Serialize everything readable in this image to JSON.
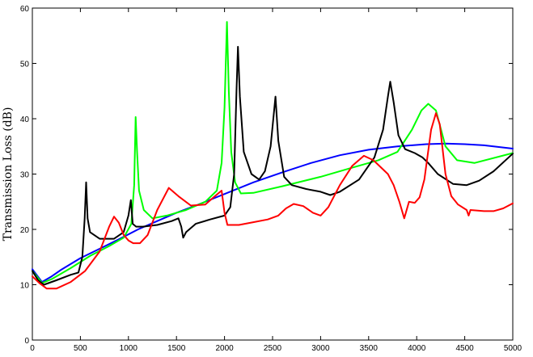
{
  "chart_data": {
    "type": "line",
    "title": "",
    "xlabel": "",
    "ylabel": "Transmission Loss (dB)",
    "xlim": [
      0,
      5000
    ],
    "ylim": [
      0,
      60
    ],
    "xticks": [
      0,
      500,
      1000,
      1500,
      2000,
      2500,
      3000,
      3500,
      4000,
      4500,
      5000
    ],
    "yticks": [
      0,
      10,
      20,
      30,
      40,
      50,
      60
    ],
    "grid": false,
    "legend": "none",
    "series": [
      {
        "color": "#0000ff",
        "points": [
          [
            0,
            12.8
          ],
          [
            100,
            10.5
          ],
          [
            200,
            11.5
          ],
          [
            300,
            12.7
          ],
          [
            500,
            14.8
          ],
          [
            700,
            16.5
          ],
          [
            900,
            18.2
          ],
          [
            1100,
            20.0
          ],
          [
            1300,
            21.5
          ],
          [
            1500,
            23.0
          ],
          [
            1700,
            24.3
          ],
          [
            2000,
            26.4
          ],
          [
            2300,
            28.5
          ],
          [
            2600,
            30.3
          ],
          [
            2900,
            32.0
          ],
          [
            3200,
            33.4
          ],
          [
            3500,
            34.4
          ],
          [
            3800,
            35.0
          ],
          [
            4100,
            35.4
          ],
          [
            4300,
            35.5
          ],
          [
            4500,
            35.4
          ],
          [
            4700,
            35.2
          ],
          [
            5000,
            34.6
          ]
        ]
      },
      {
        "color": "#00ff00",
        "points": [
          [
            0,
            12.5
          ],
          [
            100,
            10.3
          ],
          [
            200,
            11.0
          ],
          [
            400,
            13.0
          ],
          [
            600,
            15.2
          ],
          [
            800,
            17.0
          ],
          [
            950,
            18.5
          ],
          [
            1030,
            21.0
          ],
          [
            1060,
            28.0
          ],
          [
            1075,
            40.3
          ],
          [
            1090,
            34.0
          ],
          [
            1110,
            27.0
          ],
          [
            1160,
            23.5
          ],
          [
            1250,
            22.0
          ],
          [
            1400,
            22.5
          ],
          [
            1600,
            23.5
          ],
          [
            1800,
            25.0
          ],
          [
            1920,
            27.0
          ],
          [
            1970,
            32.0
          ],
          [
            2000,
            42.0
          ],
          [
            2025,
            57.5
          ],
          [
            2045,
            45.0
          ],
          [
            2070,
            34.0
          ],
          [
            2110,
            28.5
          ],
          [
            2170,
            26.5
          ],
          [
            2300,
            26.6
          ],
          [
            2600,
            27.8
          ],
          [
            3000,
            29.5
          ],
          [
            3300,
            31.0
          ],
          [
            3600,
            32.5
          ],
          [
            3800,
            34.0
          ],
          [
            3950,
            38.0
          ],
          [
            4050,
            41.5
          ],
          [
            4120,
            42.7
          ],
          [
            4200,
            41.5
          ],
          [
            4300,
            35.0
          ],
          [
            4420,
            32.5
          ],
          [
            4600,
            32.0
          ],
          [
            5000,
            33.8
          ]
        ]
      },
      {
        "color": "#000000",
        "points": [
          [
            0,
            12.5
          ],
          [
            60,
            10.8
          ],
          [
            120,
            10.0
          ],
          [
            250,
            10.8
          ],
          [
            400,
            11.8
          ],
          [
            480,
            12.2
          ],
          [
            520,
            15.0
          ],
          [
            545,
            22.0
          ],
          [
            560,
            28.5
          ],
          [
            575,
            22.0
          ],
          [
            600,
            19.5
          ],
          [
            700,
            18.3
          ],
          [
            850,
            18.3
          ],
          [
            950,
            19.5
          ],
          [
            1000,
            22.5
          ],
          [
            1025,
            25.3
          ],
          [
            1045,
            21.0
          ],
          [
            1080,
            20.5
          ],
          [
            1150,
            20.5
          ],
          [
            1300,
            20.8
          ],
          [
            1450,
            21.5
          ],
          [
            1520,
            22.0
          ],
          [
            1550,
            20.5
          ],
          [
            1570,
            18.5
          ],
          [
            1600,
            19.5
          ],
          [
            1700,
            21.0
          ],
          [
            1850,
            21.8
          ],
          [
            2000,
            22.5
          ],
          [
            2060,
            24.0
          ],
          [
            2100,
            30.0
          ],
          [
            2125,
            45.0
          ],
          [
            2140,
            53.0
          ],
          [
            2160,
            44.0
          ],
          [
            2200,
            34.0
          ],
          [
            2280,
            30.0
          ],
          [
            2360,
            29.0
          ],
          [
            2420,
            30.5
          ],
          [
            2480,
            35.0
          ],
          [
            2530,
            44.0
          ],
          [
            2560,
            36.0
          ],
          [
            2620,
            29.5
          ],
          [
            2700,
            28.0
          ],
          [
            2850,
            27.3
          ],
          [
            3000,
            26.8
          ],
          [
            3100,
            26.2
          ],
          [
            3200,
            26.8
          ],
          [
            3400,
            29.0
          ],
          [
            3560,
            33.0
          ],
          [
            3650,
            38.0
          ],
          [
            3700,
            44.0
          ],
          [
            3725,
            46.7
          ],
          [
            3760,
            43.0
          ],
          [
            3810,
            37.0
          ],
          [
            3880,
            34.5
          ],
          [
            3980,
            33.8
          ],
          [
            4060,
            33.0
          ],
          [
            4120,
            32.0
          ],
          [
            4220,
            30.0
          ],
          [
            4380,
            28.2
          ],
          [
            4520,
            28.0
          ],
          [
            4650,
            28.8
          ],
          [
            4800,
            30.5
          ],
          [
            5000,
            33.7
          ]
        ]
      },
      {
        "color": "#ff0000",
        "points": [
          [
            0,
            11.5
          ],
          [
            80,
            10.2
          ],
          [
            150,
            9.3
          ],
          [
            250,
            9.3
          ],
          [
            400,
            10.5
          ],
          [
            550,
            12.5
          ],
          [
            700,
            16.0
          ],
          [
            800,
            20.5
          ],
          [
            850,
            22.3
          ],
          [
            900,
            21.2
          ],
          [
            950,
            19.0
          ],
          [
            1000,
            18.0
          ],
          [
            1050,
            17.5
          ],
          [
            1120,
            17.5
          ],
          [
            1200,
            19.0
          ],
          [
            1300,
            23.5
          ],
          [
            1420,
            27.5
          ],
          [
            1520,
            26.0
          ],
          [
            1650,
            24.3
          ],
          [
            1800,
            24.5
          ],
          [
            1900,
            26.0
          ],
          [
            1970,
            27.0
          ],
          [
            2000,
            23.0
          ],
          [
            2030,
            20.8
          ],
          [
            2150,
            20.8
          ],
          [
            2300,
            21.3
          ],
          [
            2450,
            21.8
          ],
          [
            2560,
            22.5
          ],
          [
            2640,
            23.8
          ],
          [
            2720,
            24.6
          ],
          [
            2820,
            24.2
          ],
          [
            2920,
            23.0
          ],
          [
            3000,
            22.5
          ],
          [
            3080,
            24.0
          ],
          [
            3200,
            28.0
          ],
          [
            3330,
            31.5
          ],
          [
            3450,
            33.3
          ],
          [
            3550,
            32.5
          ],
          [
            3700,
            30.0
          ],
          [
            3760,
            28.0
          ],
          [
            3820,
            25.0
          ],
          [
            3870,
            22.0
          ],
          [
            3920,
            25.0
          ],
          [
            3980,
            24.8
          ],
          [
            4030,
            25.8
          ],
          [
            4080,
            29.0
          ],
          [
            4150,
            38.0
          ],
          [
            4200,
            41.0
          ],
          [
            4240,
            39.0
          ],
          [
            4300,
            30.0
          ],
          [
            4360,
            26.0
          ],
          [
            4430,
            24.5
          ],
          [
            4520,
            23.5
          ],
          [
            4540,
            22.5
          ],
          [
            4560,
            23.5
          ],
          [
            4700,
            23.3
          ],
          [
            4800,
            23.3
          ],
          [
            4900,
            23.8
          ],
          [
            5000,
            24.7
          ]
        ]
      }
    ]
  }
}
